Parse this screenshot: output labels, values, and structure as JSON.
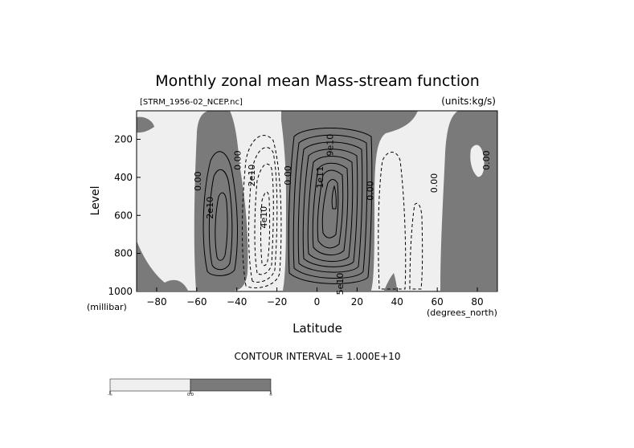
{
  "chart_data": {
    "type": "contour",
    "title": "Monthly zonal mean Mass-stream function",
    "file_label": "[STRM_1956-02_NCEP.nc]",
    "units_label": "(units:kg/s)",
    "xlabel": "Latitude",
    "x_units": "(degrees_north)",
    "ylabel": "Level",
    "y_units": "(millibar)",
    "xlim": [
      -90,
      90
    ],
    "ylim": [
      1000,
      50
    ],
    "x_ticks": [
      -80,
      -60,
      -40,
      -20,
      0,
      20,
      40,
      60,
      80
    ],
    "y_ticks": [
      200,
      400,
      600,
      800,
      1000
    ],
    "contour_interval_text": "CONTOUR INTERVAL = 1.000E+10",
    "contour_labels": [
      {
        "text": "0.00",
        "lat": -58,
        "lev": 420
      },
      {
        "text": "2e10",
        "lat": -52,
        "lev": 560
      },
      {
        "text": "0.00",
        "lat": -38,
        "lev": 310
      },
      {
        "text": "2e10",
        "lat": -31,
        "lev": 390
      },
      {
        "text": "4e10",
        "lat": -25,
        "lev": 610
      },
      {
        "text": "0.00",
        "lat": -13,
        "lev": 390
      },
      {
        "text": "1e11",
        "lat": 3,
        "lev": 400
      },
      {
        "text": "0.00",
        "lat": 28,
        "lev": 470
      },
      {
        "text": "9e10",
        "lat": 8,
        "lev": 230
      },
      {
        "text": "5e10",
        "lat": 13,
        "lev": 960
      },
      {
        "text": "0.00",
        "lat": 60,
        "lev": 430
      },
      {
        "text": "0.00",
        "lat": 86,
        "lev": 310
      }
    ],
    "colorbar": {
      "tick_labels": [
        "-∞",
        "0.0",
        "∞"
      ],
      "colors": [
        "#efefef",
        "#7a7a7a"
      ]
    },
    "fill_negative": "#efefef",
    "fill_positive": "#7a7a7a"
  }
}
